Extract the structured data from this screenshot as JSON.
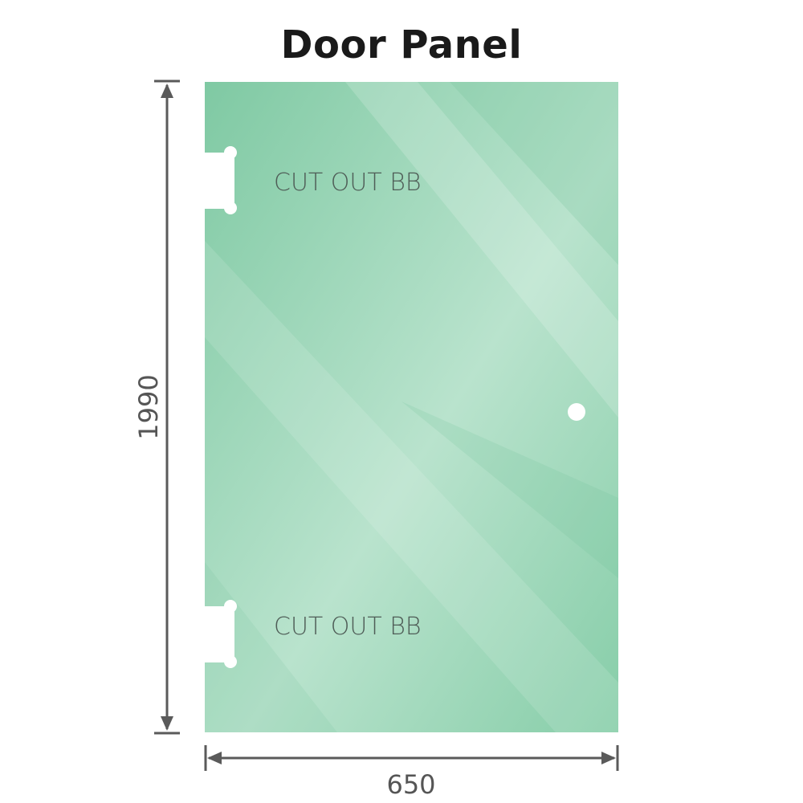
{
  "title": "Door Panel",
  "panel": {
    "color": "#8fd0ae",
    "cutouts": [
      {
        "label": "CUT OUT BB"
      },
      {
        "label": "CUT OUT BB"
      }
    ]
  },
  "dimensions": {
    "height": "1990",
    "width": "650"
  },
  "colors": {
    "dimension_line": "#5a5a5a",
    "label_text": "#4f5d57"
  }
}
